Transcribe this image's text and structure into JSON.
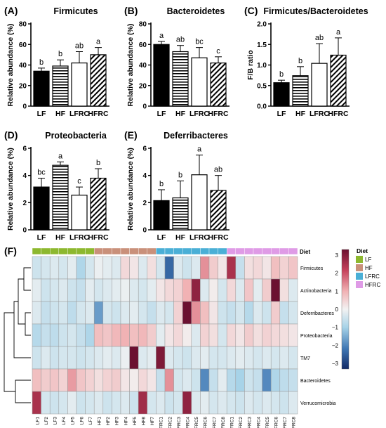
{
  "chart_data": [
    {
      "type": "bar",
      "panel_label": "(A)",
      "title": "Firmicutes",
      "xlabel": "",
      "ylabel": "Relative abundance (%)",
      "ylim": [
        0,
        80
      ],
      "yticks": [
        "0",
        "20",
        "40",
        "60",
        "80"
      ],
      "categories": [
        "LF",
        "HF",
        "LFRC",
        "HFRC"
      ],
      "values": [
        34,
        39,
        42,
        50
      ],
      "errors": [
        3,
        6,
        11,
        7
      ],
      "significance": [
        "b",
        "b",
        "ab",
        "a"
      ]
    },
    {
      "type": "bar",
      "panel_label": "(B)",
      "title": "Bacteroidetes",
      "xlabel": "",
      "ylabel": "Relative abundance (%)",
      "ylim": [
        0,
        80
      ],
      "yticks": [
        "0",
        "20",
        "40",
        "60",
        "80"
      ],
      "categories": [
        "LF",
        "HF",
        "LFRC",
        "HFRC"
      ],
      "values": [
        60,
        53,
        47,
        42
      ],
      "errors": [
        3,
        6,
        10,
        6
      ],
      "significance": [
        "a",
        "ab",
        "bc",
        "c"
      ]
    },
    {
      "type": "bar",
      "panel_label": "(C)",
      "title": "Firmicutes/Bacteroidetes",
      "xlabel": "",
      "ylabel": "F/B ratio",
      "ylim": [
        0,
        2.0
      ],
      "yticks": [
        "0.0",
        "0.5",
        "1.0",
        "1.5",
        "2.0"
      ],
      "categories": [
        "LF",
        "HF",
        "LFRC",
        "HFRC"
      ],
      "values": [
        0.57,
        0.74,
        1.04,
        1.24
      ],
      "errors": [
        0.06,
        0.22,
        0.48,
        0.42
      ],
      "significance": [
        "b",
        "b",
        "ab",
        "a"
      ]
    },
    {
      "type": "bar",
      "panel_label": "(D)",
      "title": "Proteobacteria",
      "xlabel": "",
      "ylabel": "Relative abundance (%)",
      "ylim": [
        0,
        6
      ],
      "yticks": [
        "0",
        "2",
        "4",
        "6"
      ],
      "categories": [
        "LF",
        "HF",
        "LFRC",
        "HFRC"
      ],
      "values": [
        3.15,
        4.75,
        2.55,
        3.8
      ],
      "errors": [
        0.65,
        0.25,
        0.6,
        0.7
      ],
      "significance": [
        "bc",
        "a",
        "c",
        "b"
      ]
    },
    {
      "type": "bar",
      "panel_label": "(E)",
      "title": "Deferribacteres",
      "xlabel": "",
      "ylabel": "Relative abundance (%)",
      "ylim": [
        0,
        6
      ],
      "yticks": [
        "0",
        "2",
        "4",
        "6"
      ],
      "categories": [
        "LF",
        "HF",
        "LFRC",
        "HFRC"
      ],
      "values": [
        2.15,
        2.35,
        4.05,
        2.9
      ],
      "errors": [
        0.8,
        1.25,
        1.45,
        1.1
      ],
      "significance": [
        "b",
        "b",
        "a",
        "ab"
      ]
    },
    {
      "type": "heatmap",
      "panel_label": "(F)",
      "title": "",
      "columns": [
        "LF1",
        "LF2",
        "LF3",
        "LF4",
        "LF5",
        "LF6",
        "LF7",
        "HF1",
        "HF2",
        "HF3",
        "HF4",
        "HF5",
        "HF8",
        "HF7",
        "LFRC1",
        "LFRC2",
        "LFRC3",
        "LFRC4",
        "LFRC5",
        "LFRC6",
        "LFRC7",
        "LFRC8",
        "HFRC1",
        "HFRC2",
        "HFRC3",
        "HFRC4",
        "HFRC5",
        "HFRC6",
        "HFRC7",
        "HFRC8"
      ],
      "column_groups": [
        "LF",
        "LF",
        "LF",
        "LF",
        "LF",
        "LF",
        "LF",
        "HF",
        "HF",
        "HF",
        "HF",
        "HF",
        "HF",
        "HF",
        "LFRC",
        "LFRC",
        "LFRC",
        "LFRC",
        "LFRC",
        "LFRC",
        "LFRC",
        "LFRC",
        "HFRC",
        "HFRC",
        "HFRC",
        "HFRC",
        "HFRC",
        "HFRC",
        "HFRC",
        "HFRC"
      ],
      "rows": [
        "Firmicutes",
        "Actinobacteria",
        "Deferribacteres",
        "Proteobacteria",
        "TM7",
        "Bacteroidetes",
        "Verrucomicrobia"
      ],
      "annotation_title": "Diet",
      "legend_title": "Diet",
      "legend": [
        {
          "name": "LF",
          "color": "#8db82f"
        },
        {
          "name": "HF",
          "color": "#c9907a"
        },
        {
          "name": "LFRC",
          "color": "#4aafd6"
        },
        {
          "name": "HFRC",
          "color": "#df9be6"
        }
      ],
      "colorbar_ticks": [
        "3",
        "2",
        "1",
        "0",
        "−1",
        "−2",
        "−3"
      ],
      "color_range": [
        -3,
        3
      ],
      "values": [
        [
          -0.5,
          -0.4,
          -0.3,
          -0.4,
          -0.2,
          -0.9,
          -0.4,
          -0.1,
          -0.2,
          -0.3,
          0.4,
          0.2,
          -0.3,
          0.3,
          -0.4,
          -2.2,
          -0.3,
          -0.5,
          -0.3,
          1.3,
          0.6,
          0.2,
          2.3,
          -0.6,
          0.3,
          0.4,
          0.2,
          0.8,
          0.5,
          0.7
        ],
        [
          -0.2,
          -0.5,
          -0.4,
          -0.3,
          -0.5,
          -0.6,
          -0.2,
          -0.4,
          -0.3,
          -0.2,
          -0.1,
          -0.3,
          -0.4,
          -0.2,
          0.2,
          0.4,
          0.5,
          1.0,
          2.6,
          -0.3,
          0.1,
          -0.4,
          0.4,
          -0.3,
          0.7,
          -0.2,
          0.6,
          3.2,
          0.3,
          -0.3
        ],
        [
          -0.3,
          -0.6,
          -0.5,
          -0.4,
          -0.7,
          -0.4,
          -0.3,
          -1.6,
          -0.4,
          -0.5,
          -0.3,
          -0.2,
          -0.4,
          -0.6,
          -0.3,
          -0.4,
          0.5,
          3.0,
          1.3,
          0.8,
          0.2,
          -0.5,
          -0.6,
          -0.4,
          -0.8,
          -0.3,
          -0.5,
          0.6,
          -0.6,
          -0.4
        ],
        [
          -0.8,
          -0.6,
          -0.7,
          -0.5,
          -0.4,
          -0.6,
          -0.9,
          0.8,
          0.7,
          0.9,
          1.0,
          0.8,
          0.9,
          0.6,
          -0.2,
          0.2,
          0.4,
          0.1,
          -0.3,
          0.5,
          0.3,
          -0.4,
          0.4,
          0.2,
          0.6,
          0.3,
          0.5,
          0.4,
          0.3,
          0.2
        ],
        [
          -0.5,
          -0.3,
          -0.5,
          -0.4,
          -0.4,
          -0.5,
          -0.4,
          -0.3,
          -0.2,
          -0.3,
          -0.1,
          3.2,
          -0.3,
          -0.2,
          2.8,
          -0.3,
          -0.4,
          -0.5,
          -0.3,
          -0.2,
          -0.4,
          -0.4,
          -0.3,
          -0.2,
          -0.3,
          -0.4,
          -0.3,
          -0.4,
          -0.3,
          -0.4
        ],
        [
          0.8,
          0.6,
          0.7,
          0.5,
          1.2,
          0.7,
          0.5,
          0.3,
          0.5,
          0.6,
          0.2,
          0.1,
          0.4,
          0.2,
          -0.6,
          1.3,
          -0.4,
          -0.3,
          -0.5,
          -1.8,
          -0.6,
          -0.2,
          -0.8,
          -1.0,
          -0.5,
          -0.6,
          -1.8,
          -0.9,
          -0.7,
          -0.6
        ],
        [
          2.3,
          -0.4,
          -0.5,
          -0.4,
          -0.2,
          -0.5,
          -0.4,
          -0.3,
          -0.5,
          -0.4,
          -0.3,
          -0.5,
          2.4,
          -0.4,
          -0.3,
          -0.5,
          -0.4,
          2.6,
          -0.3,
          -0.2,
          -0.4,
          -0.3,
          -0.4,
          -0.5,
          -0.3,
          -0.4,
          -0.3,
          -0.4,
          -0.5,
          -0.3
        ]
      ]
    }
  ]
}
